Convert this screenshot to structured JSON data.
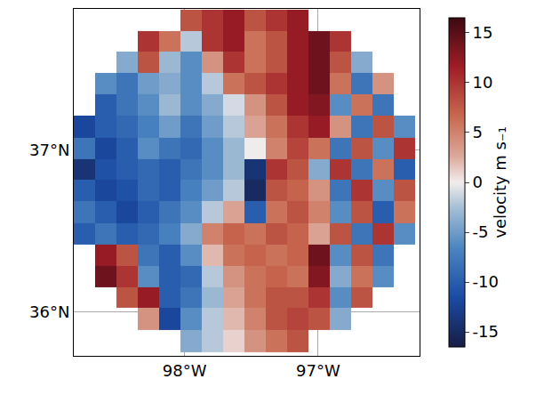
{
  "chart_data": {
    "type": "heatmap",
    "x": [
      -98.75,
      -98.59,
      -98.43,
      -98.27,
      -98.11,
      -97.95,
      -97.79,
      -97.63,
      -97.47,
      -97.31,
      -97.15,
      -96.99,
      -96.83,
      -96.67,
      -96.51,
      -96.35
    ],
    "y": [
      37.8,
      37.67,
      37.54,
      37.41,
      37.28,
      37.14,
      37.01,
      36.88,
      36.75,
      36.62,
      36.48,
      36.35,
      36.22,
      36.09,
      35.96,
      35.82
    ],
    "cells": [
      [
        null,
        null,
        null,
        null,
        null,
        8,
        10,
        12,
        8,
        10,
        12,
        null,
        null,
        null,
        null,
        null
      ],
      [
        null,
        null,
        null,
        10,
        6,
        -2,
        10,
        12,
        6,
        8,
        12,
        14,
        10,
        null,
        null,
        null
      ],
      [
        null,
        null,
        -4,
        8,
        -3,
        -6,
        4,
        10,
        6,
        8,
        12,
        14,
        8,
        -4,
        null,
        null
      ],
      [
        null,
        -6,
        -8,
        -5,
        -4,
        -6,
        -2,
        6,
        8,
        10,
        12,
        14,
        6,
        -8,
        4,
        null
      ],
      [
        null,
        -10,
        -8,
        -6,
        -3,
        -6,
        -4,
        -1,
        4,
        8,
        12,
        13,
        -6,
        6,
        -8,
        null
      ],
      [
        -12,
        -10,
        -9,
        -7,
        -5,
        -8,
        -5,
        -2,
        3,
        6,
        10,
        12,
        4,
        -8,
        8,
        -6
      ],
      [
        -8,
        -12,
        -10,
        -6,
        -8,
        -9,
        -6,
        -3,
        0,
        5,
        9,
        6,
        -8,
        8,
        -6,
        10
      ],
      [
        -14,
        -11,
        -10,
        -9,
        -10,
        -8,
        -6,
        -3,
        -14,
        10,
        8,
        -4,
        10,
        -8,
        6,
        -10
      ],
      [
        -10,
        -12,
        -11,
        -9,
        -10,
        -7,
        -5,
        -2,
        -15,
        8,
        7,
        4,
        -8,
        10,
        -6,
        8
      ],
      [
        -8,
        -10,
        -12,
        -10,
        -8,
        -6,
        -2,
        3,
        -10,
        6,
        8,
        5,
        -6,
        8,
        -10,
        6
      ],
      [
        -10,
        -8,
        -10,
        -9,
        -7,
        -4,
        5,
        7,
        6,
        8,
        7,
        3,
        8,
        -8,
        10,
        -6
      ],
      [
        null,
        12,
        8,
        -8,
        -10,
        -6,
        2,
        6,
        7,
        6,
        7,
        14,
        -6,
        8,
        -8,
        null
      ],
      [
        null,
        14,
        10,
        -6,
        -10,
        -9,
        -2,
        4,
        6,
        7,
        6,
        13,
        -4,
        6,
        -6,
        null
      ],
      [
        null,
        null,
        8,
        12,
        -10,
        -8,
        -3,
        3,
        6,
        8,
        8,
        10,
        -6,
        8,
        null,
        null
      ],
      [
        null,
        null,
        null,
        4,
        -12,
        -6,
        -2,
        2,
        5,
        8,
        9,
        8,
        -4,
        null,
        null,
        null
      ],
      [
        null,
        null,
        null,
        null,
        null,
        -4,
        -2,
        1,
        4,
        6,
        8,
        null,
        null,
        null,
        null,
        null
      ]
    ],
    "xlim": [
      -98.83,
      -96.24
    ],
    "ylim": [
      35.73,
      37.87
    ],
    "xticks": [
      {
        "value": -98,
        "label": "98°W"
      },
      {
        "value": -97,
        "label": "97°W"
      }
    ],
    "yticks": [
      {
        "value": 36,
        "label": "36°N"
      },
      {
        "value": 37,
        "label": "37°N"
      }
    ],
    "colorbar_label": "velocity m s₋₁",
    "colorbar_range": [
      -16.5,
      16.5
    ],
    "colorbar_ticks": [
      -15,
      -10,
      -5,
      0,
      5,
      10,
      15
    ],
    "grid": true
  }
}
